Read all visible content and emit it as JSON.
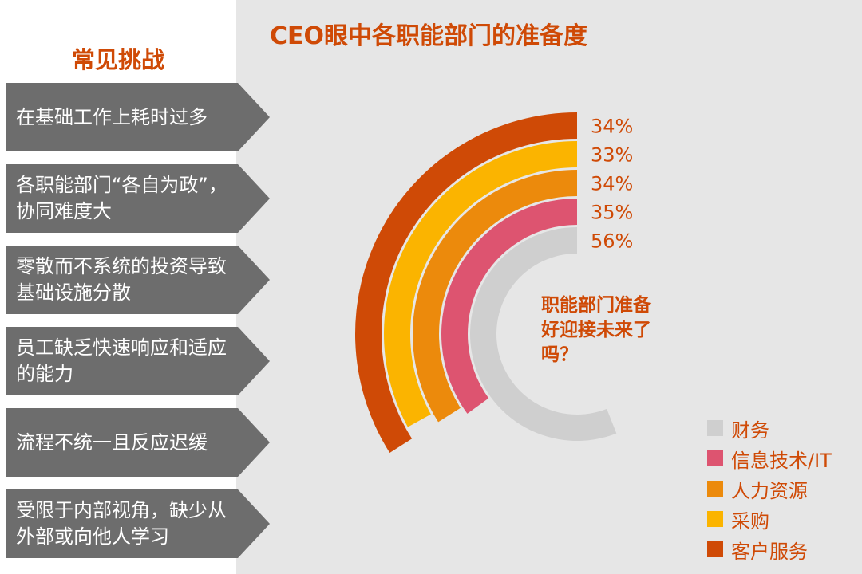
{
  "left_panel": {
    "title": "常见挑战",
    "challenges": [
      "在基础工作上耗时过多",
      "各职能部门“各自为政”，协同难度大",
      "零散而不系统的投资导致基础设施分散",
      "员工缺乏快速响应和适应的能力",
      "流程不统一且反应迟缓",
      "受限于内部视角，缺少从外部或向他人学习"
    ]
  },
  "center_question": "职能部门准备好迎接未来了吗？",
  "colors": {
    "accent": "#cf4a06",
    "arrow_gray": "#6d6d6d",
    "panel_bg": "#e6e6e6"
  },
  "chart_data": {
    "type": "radial-bar",
    "title": "CEO眼中各职能部门的准备度",
    "series": [
      {
        "name": "财务",
        "value": 56,
        "label": "56%",
        "color": "#cfcfcf"
      },
      {
        "name": "信息技术/IT",
        "value": 35,
        "label": "35%",
        "color": "#dd5470"
      },
      {
        "name": "人力资源",
        "value": 34,
        "label": "34%",
        "color": "#ec8a0c"
      },
      {
        "name": "采购",
        "value": 33,
        "label": "33%",
        "color": "#fbb400"
      },
      {
        "name": "客户服务",
        "value": 34,
        "label": "34%",
        "color": "#cf4a06"
      }
    ],
    "legend_position": "bottom-right"
  }
}
